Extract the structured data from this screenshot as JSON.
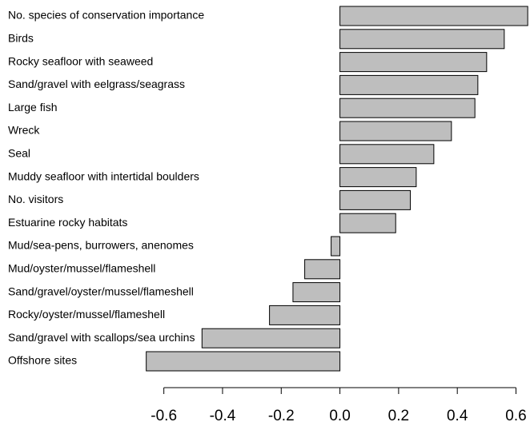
{
  "chart_data": {
    "type": "barh",
    "categories": [
      "No. species of conservation importance",
      "Birds",
      "Rocky seafloor with seaweed",
      "Sand/gravel with eelgrass/seagrass",
      "Large fish",
      "Wreck",
      "Seal",
      "Muddy seafloor with intertidal boulders",
      "No. visitors",
      "Estuarine rocky habitats",
      "Mud/sea-pens, burrowers, anenomes",
      "Mud/oyster/mussel/flameshell",
      "Sand/gravel/oyster/mussel/flameshell",
      "Rocky/oyster/mussel/flameshell",
      "Sand/gravel with scallops/sea urchins",
      "Offshore sites"
    ],
    "values": [
      0.64,
      0.56,
      0.5,
      0.47,
      0.46,
      0.38,
      0.32,
      0.26,
      0.24,
      0.19,
      -0.03,
      -0.12,
      -0.16,
      -0.24,
      -0.47,
      -0.66
    ],
    "color": "#bebebe",
    "xlim": [
      -0.67,
      0.645
    ],
    "xticks": [
      -0.6,
      -0.4,
      -0.2,
      {
        "value": 0,
        "label": "0.0"
      },
      0.2,
      0.4,
      0.6
    ]
  }
}
